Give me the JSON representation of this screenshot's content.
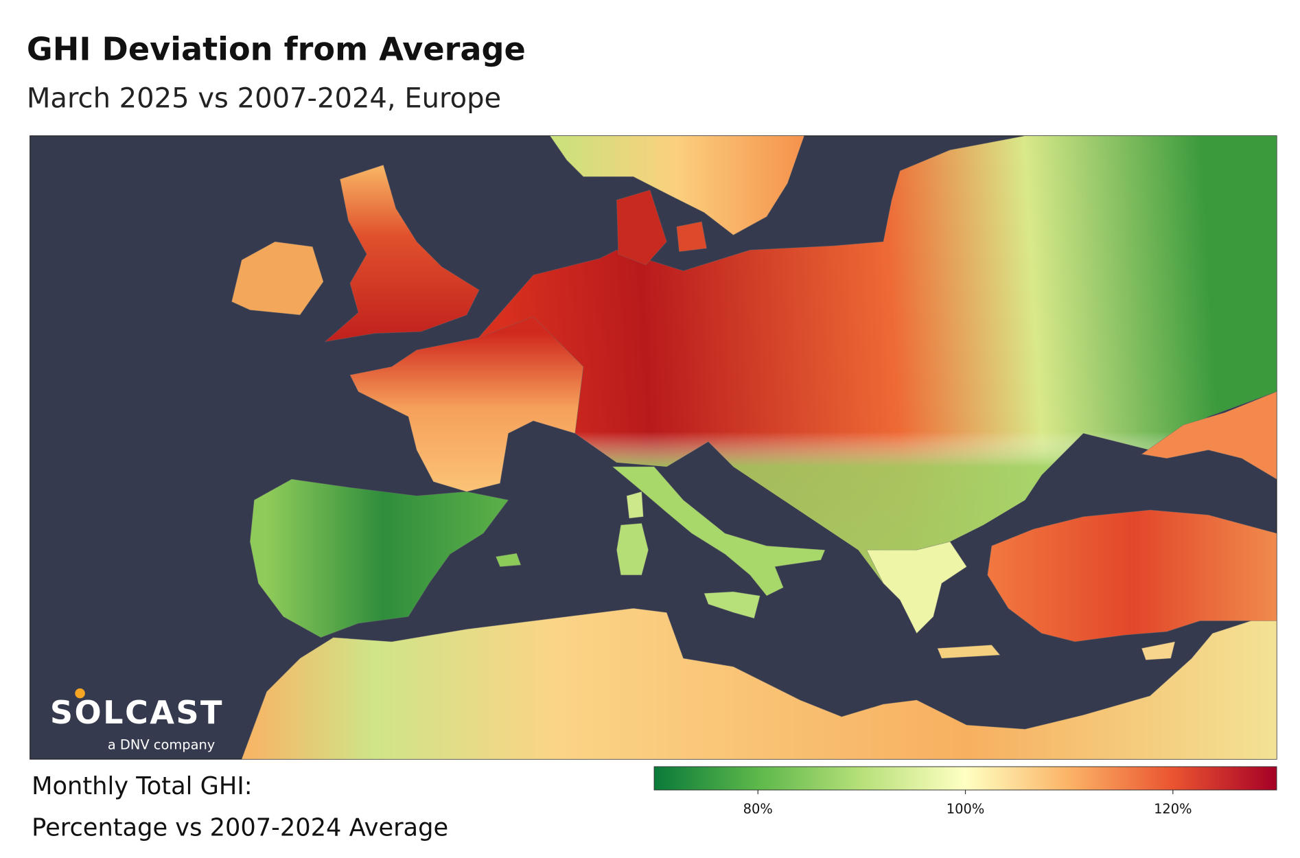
{
  "title": "GHI Deviation from Average",
  "subtitle": "March 2025 vs 2007-2024, Europe",
  "legend": {
    "title_lines": [
      "Monthly Total GHI:",
      "Percentage vs 2007-2024 Average"
    ],
    "range": [
      70,
      130
    ],
    "ticks": [
      {
        "value": 80,
        "label": "80%"
      },
      {
        "value": 100,
        "label": "100%"
      },
      {
        "value": 120,
        "label": "120%"
      }
    ],
    "colors": [
      "#0a7a3a",
      "#5db84a",
      "#b7e07a",
      "#ffffc2",
      "#fbb366",
      "#ea5430",
      "#a50026"
    ]
  },
  "logo": {
    "name": "SOLCAST",
    "tagline": "a DNV company"
  }
}
